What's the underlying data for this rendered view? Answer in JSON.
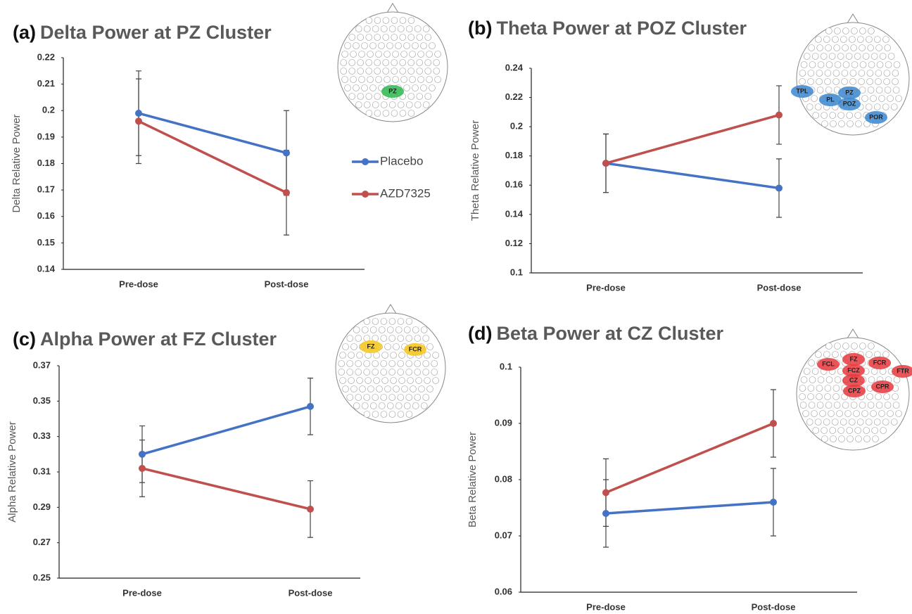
{
  "chart_data": [
    {
      "type": "line",
      "panel": "(a)",
      "title": "Delta Power at PZ Cluster",
      "ylabel": "Delta Relative Power",
      "categories": [
        "Pre-dose",
        "Post-dose"
      ],
      "series": [
        {
          "name": "Placebo",
          "color": "#4472c4",
          "values": [
            0.199,
            0.184
          ],
          "errors": [
            0.016,
            0.016
          ]
        },
        {
          "name": "AZD7325",
          "color": "#c0504d",
          "values": [
            0.196,
            0.169
          ],
          "errors": [
            0.016,
            0.016
          ]
        }
      ],
      "ylim": [
        0.14,
        0.22
      ],
      "yticks": [
        0.14,
        0.15,
        0.16,
        0.17,
        0.18,
        0.19,
        0.2,
        0.21,
        0.22
      ],
      "legend": "right",
      "clusters": [
        "PZ"
      ],
      "cluster_color": "#2db84d"
    },
    {
      "type": "line",
      "panel": "(b)",
      "title": "Theta Power at POZ Cluster",
      "ylabel": "Theta Relative Power",
      "categories": [
        "Pre-dose",
        "Post-dose"
      ],
      "series": [
        {
          "color": "#4472c4",
          "values": [
            0.175,
            0.158
          ],
          "errors": [
            0.02,
            0.02
          ]
        },
        {
          "color": "#c0504d",
          "values": [
            0.175,
            0.208
          ],
          "errors": [
            0.02,
            0.02
          ]
        }
      ],
      "ylim": [
        0.1,
        0.24
      ],
      "yticks": [
        0.1,
        0.12,
        0.14,
        0.16,
        0.18,
        0.2,
        0.22,
        0.24
      ],
      "clusters": [
        "TPL",
        "PL",
        "PZ",
        "POZ",
        "POR"
      ],
      "cluster_color": "#3a86d0"
    },
    {
      "type": "line",
      "panel": "(c)",
      "title": "Alpha Power at FZ Cluster",
      "ylabel": "Alpha Relative Power",
      "categories": [
        "Pre-dose",
        "Post-dose"
      ],
      "series": [
        {
          "color": "#4472c4",
          "values": [
            0.32,
            0.347
          ],
          "errors": [
            0.016,
            0.016
          ]
        },
        {
          "color": "#c0504d",
          "values": [
            0.312,
            0.289
          ],
          "errors": [
            0.016,
            0.016
          ]
        }
      ],
      "ylim": [
        0.25,
        0.37
      ],
      "yticks": [
        0.25,
        0.27,
        0.29,
        0.31,
        0.33,
        0.35,
        0.37
      ],
      "clusters": [
        "FZ",
        "FCR"
      ],
      "cluster_color": "#f5c518"
    },
    {
      "type": "line",
      "panel": "(d)",
      "title": "Beta Power at CZ Cluster",
      "ylabel": "Beta Relative Power",
      "categories": [
        "Pre-dose",
        "Post-dose"
      ],
      "series": [
        {
          "color": "#4472c4",
          "values": [
            0.074,
            0.076
          ],
          "errors": [
            0.006,
            0.006
          ]
        },
        {
          "color": "#c0504d",
          "values": [
            0.0777,
            0.09
          ],
          "errors": [
            0.006,
            0.006
          ]
        }
      ],
      "ylim": [
        0.06,
        0.1
      ],
      "yticks": [
        0.06,
        0.07,
        0.08,
        0.09,
        0.1
      ],
      "clusters": [
        "FCL",
        "FZ",
        "FCR",
        "FCZ",
        "FTR",
        "CZ",
        "CPZ",
        "CPR"
      ],
      "cluster_color": "#e8383d"
    }
  ]
}
